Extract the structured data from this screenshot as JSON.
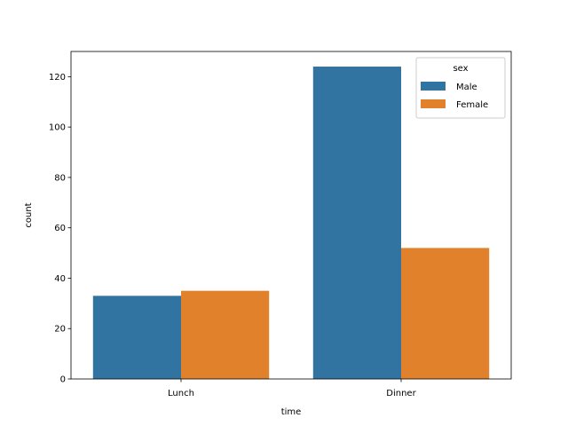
{
  "chart_data": {
    "type": "bar",
    "categories": [
      "Lunch",
      "Dinner"
    ],
    "series": [
      {
        "name": "Male",
        "values": [
          33,
          124
        ],
        "color": "#3274a1"
      },
      {
        "name": "Female",
        "values": [
          35,
          52
        ],
        "color": "#e1812c"
      }
    ],
    "title": "",
    "xlabel": "time",
    "ylabel": "count",
    "ylim": [
      0,
      130
    ],
    "yticks": [
      0,
      20,
      40,
      60,
      80,
      100,
      120
    ],
    "legend": {
      "title": "sex",
      "placement": "top-right"
    },
    "grid": false
  }
}
